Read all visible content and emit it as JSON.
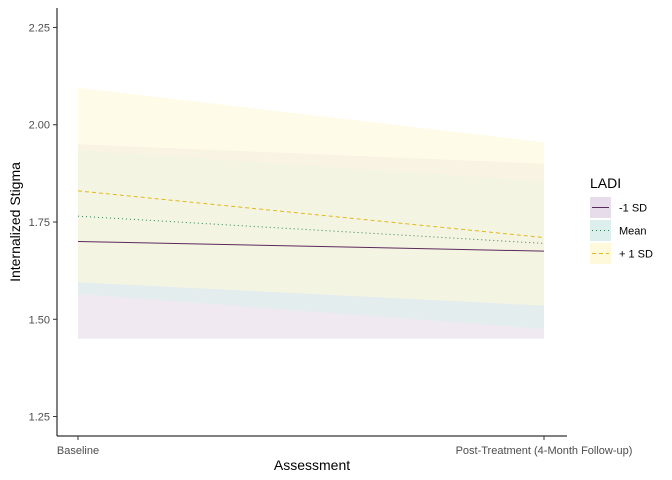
{
  "chart_data": {
    "type": "line",
    "xlabel": "Assessment",
    "ylabel": "Internalized Stigma",
    "categories": [
      "Baseline",
      "Post-Treatment (4-Month Follow-up)"
    ],
    "ylim": [
      1.2,
      2.3
    ],
    "yticks": [
      "1.25",
      "1.50",
      "1.75",
      "2.00",
      "2.25"
    ],
    "grid": false,
    "legend": {
      "title": "LADI",
      "position": "right"
    },
    "series": [
      {
        "name": "-1 SD",
        "values": [
          1.7,
          1.675
        ],
        "lower": [
          1.45,
          1.45
        ],
        "upper": [
          1.95,
          1.9
        ],
        "line_color": "#5b2a5c",
        "fill_color": "#e6dcea",
        "linestyle": "solid"
      },
      {
        "name": "Mean",
        "values": [
          1.765,
          1.695
        ],
        "lower": [
          1.565,
          1.475
        ],
        "upper": [
          1.935,
          1.855
        ],
        "line_color": "#2e7d5b",
        "fill_color": "#dcefec",
        "linestyle": "dotted"
      },
      {
        "name": "+ 1 SD",
        "values": [
          1.83,
          1.71
        ],
        "lower": [
          1.595,
          1.535
        ],
        "upper": [
          2.095,
          1.955
        ],
        "line_color": "#e0b91e",
        "fill_color": "#fff9dc",
        "linestyle": "dashed"
      }
    ]
  }
}
